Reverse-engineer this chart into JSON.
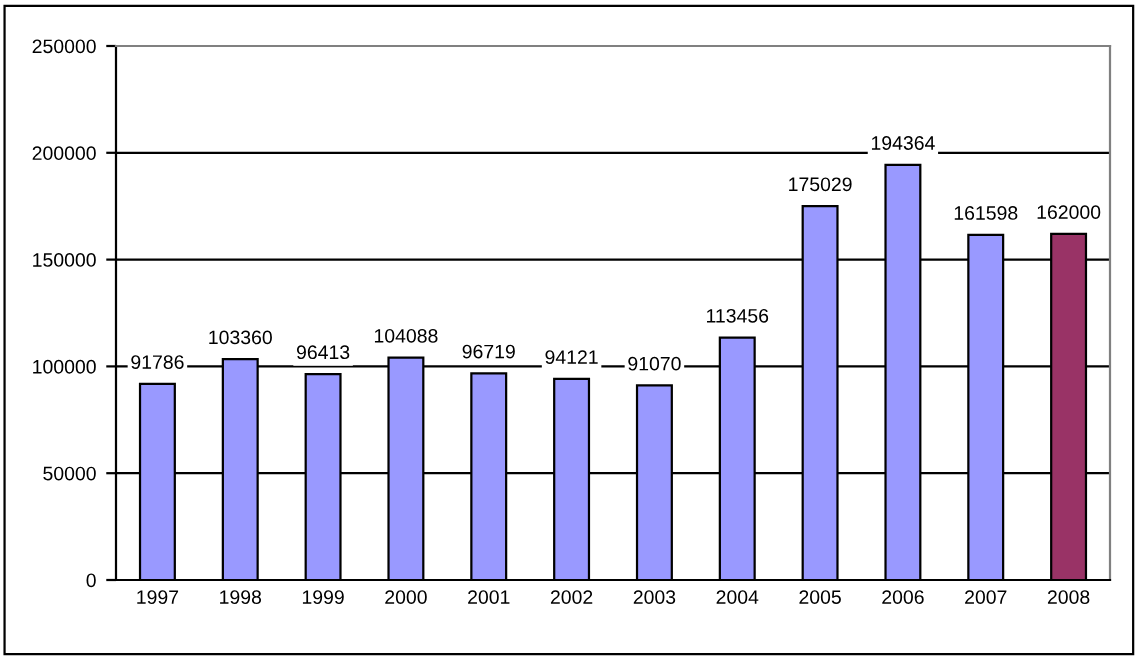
{
  "chart_data": {
    "type": "bar",
    "categories": [
      "1997",
      "1998",
      "1999",
      "2000",
      "2001",
      "2002",
      "2003",
      "2004",
      "2005",
      "2006",
      "2007",
      "2008"
    ],
    "values": [
      91786,
      103360,
      96413,
      104088,
      96719,
      94121,
      91070,
      113456,
      175029,
      194364,
      161598,
      162000
    ],
    "colors": [
      "#9999ff",
      "#9999ff",
      "#9999ff",
      "#9999ff",
      "#9999ff",
      "#9999ff",
      "#9999ff",
      "#9999ff",
      "#9999ff",
      "#9999ff",
      "#9999ff",
      "#993366"
    ],
    "ylim": [
      0,
      250000
    ],
    "yticks": [
      0,
      50000,
      100000,
      150000,
      200000,
      250000
    ],
    "grid": "y",
    "data_labels": true
  }
}
